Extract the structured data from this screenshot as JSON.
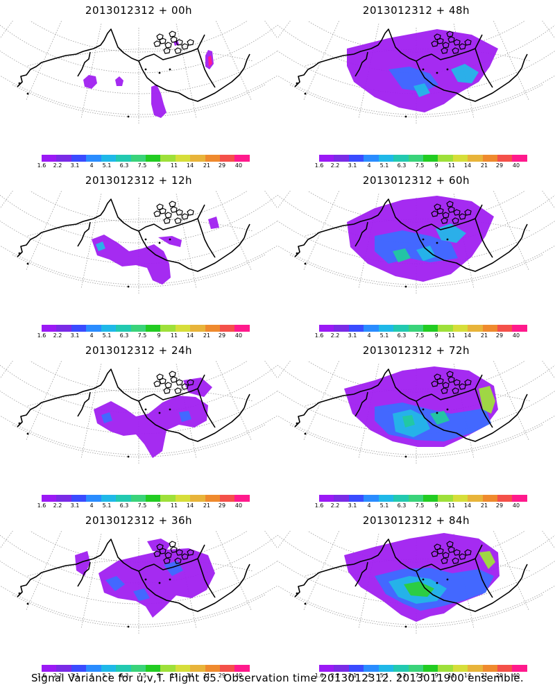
{
  "panels": [
    {
      "title": "2013012312 + 00h"
    },
    {
      "title": "2013012312 + 48h"
    },
    {
      "title": "2013012312 + 12h"
    },
    {
      "title": "2013012312 + 60h"
    },
    {
      "title": "2013012312 + 24h"
    },
    {
      "title": "2013012312 + 72h"
    },
    {
      "title": "2013012312 + 36h"
    },
    {
      "title": "2013012312 + 84h"
    }
  ],
  "colorbar": {
    "labels": [
      "1.6",
      "2.2",
      "3.1",
      "4",
      "5.1",
      "6.3",
      "7.5",
      "9",
      "11",
      "14",
      "21",
      "29",
      "40"
    ],
    "colors": [
      "#9b19f5",
      "#7a2be6",
      "#3a4bff",
      "#2a8cff",
      "#1fb8e8",
      "#22c9b0",
      "#3ad37a",
      "#22cc22",
      "#9ee03a",
      "#d6de3a",
      "#e8b43a",
      "#ef8a2e",
      "#f4504a",
      "#ff1a8c"
    ]
  },
  "footer": "Signal Variance for u,v,T. Flight 65. Observation time 2013012312. 2013011900 ensemble.",
  "variance": [
    {
      "level": "low",
      "regions": 6
    },
    {
      "level": "low",
      "regions": 1
    },
    {
      "level": "low",
      "regions": 4
    },
    {
      "level": "moderate",
      "regions": 1
    },
    {
      "level": "low",
      "regions": 4
    },
    {
      "level": "moderate",
      "regions": 1
    },
    {
      "level": "low",
      "regions": 5
    },
    {
      "level": "moderate",
      "regions": 1
    }
  ]
}
